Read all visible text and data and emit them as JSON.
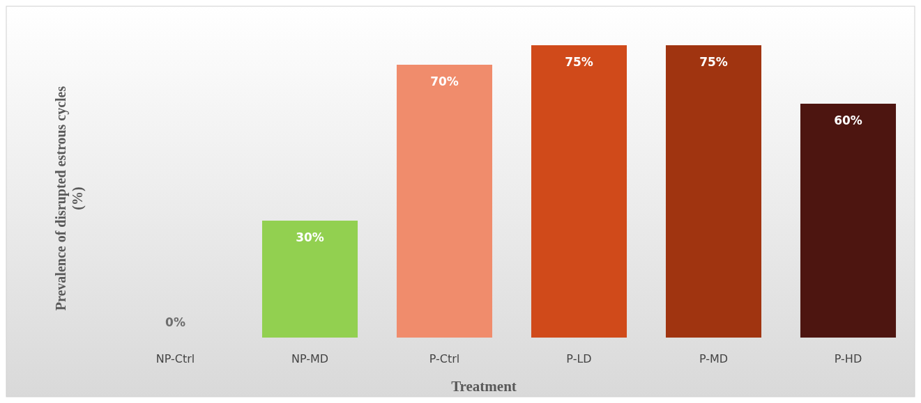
{
  "chart_data": {
    "type": "bar",
    "xlabel": "Treatment",
    "ylabel": "Prevalence of disrupted estrous cycles (%)",
    "categories": [
      "NP-Ctrl",
      "NP-MD",
      "P-Ctrl",
      "P-LD",
      "P-MD",
      "P-HD"
    ],
    "values": [
      0,
      30,
      70,
      75,
      75,
      60
    ],
    "colors": [
      "#8fbf4a",
      "#92d050",
      "#f08c6c",
      "#d04a1a",
      "#a03410",
      "#4d1510"
    ],
    "value_labels": [
      "0%",
      "30%",
      "70%",
      "75%",
      "75%",
      "60%"
    ],
    "data_labels": false
  }
}
